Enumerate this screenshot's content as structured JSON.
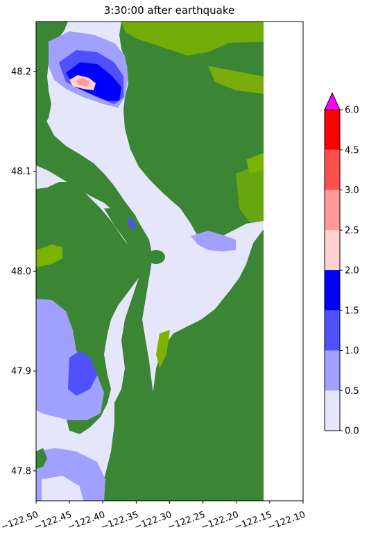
{
  "chart_data": {
    "type": "heatmap",
    "title": "3:30:00 after earthquake",
    "xlabel": "",
    "ylabel": "",
    "xlim": [
      -122.5,
      -122.1
    ],
    "ylim": [
      47.77,
      48.25
    ],
    "xticks": [
      -122.5,
      -122.45,
      -122.4,
      -122.35,
      -122.3,
      -122.25,
      -122.2,
      -122.15,
      -122.1
    ],
    "xtick_labels": [
      "−122.50",
      "−122.45",
      "−122.40",
      "−122.35",
      "−122.30",
      "−122.25",
      "−122.20",
      "−122.15",
      "−122.10"
    ],
    "yticks": [
      47.8,
      47.9,
      48.0,
      48.1,
      48.2
    ],
    "ytick_labels": [
      "47.8",
      "47.9",
      "48.0",
      "48.1",
      "48.2"
    ],
    "colorbar": {
      "levels": [
        0.0,
        0.5,
        1.0,
        1.5,
        2.0,
        2.5,
        3.0,
        4.5,
        6.0
      ],
      "labels": [
        "0.0",
        "0.5",
        "1.0",
        "1.5",
        "2.0",
        "2.5",
        "3.0",
        "4.5",
        "6.0"
      ],
      "colors": [
        "#e6e6fa",
        "#a0a0ff",
        "#5050ff",
        "#0000ff",
        "#ffd0d0",
        "#ff9a9a",
        "#ff5050",
        "#ff0000"
      ],
      "extend_color": "#ff00ff"
    },
    "land_color": "#3a8635",
    "shallow_land_color": "#7cb300",
    "outside_domain_color": "#ffffff",
    "grid": false
  }
}
